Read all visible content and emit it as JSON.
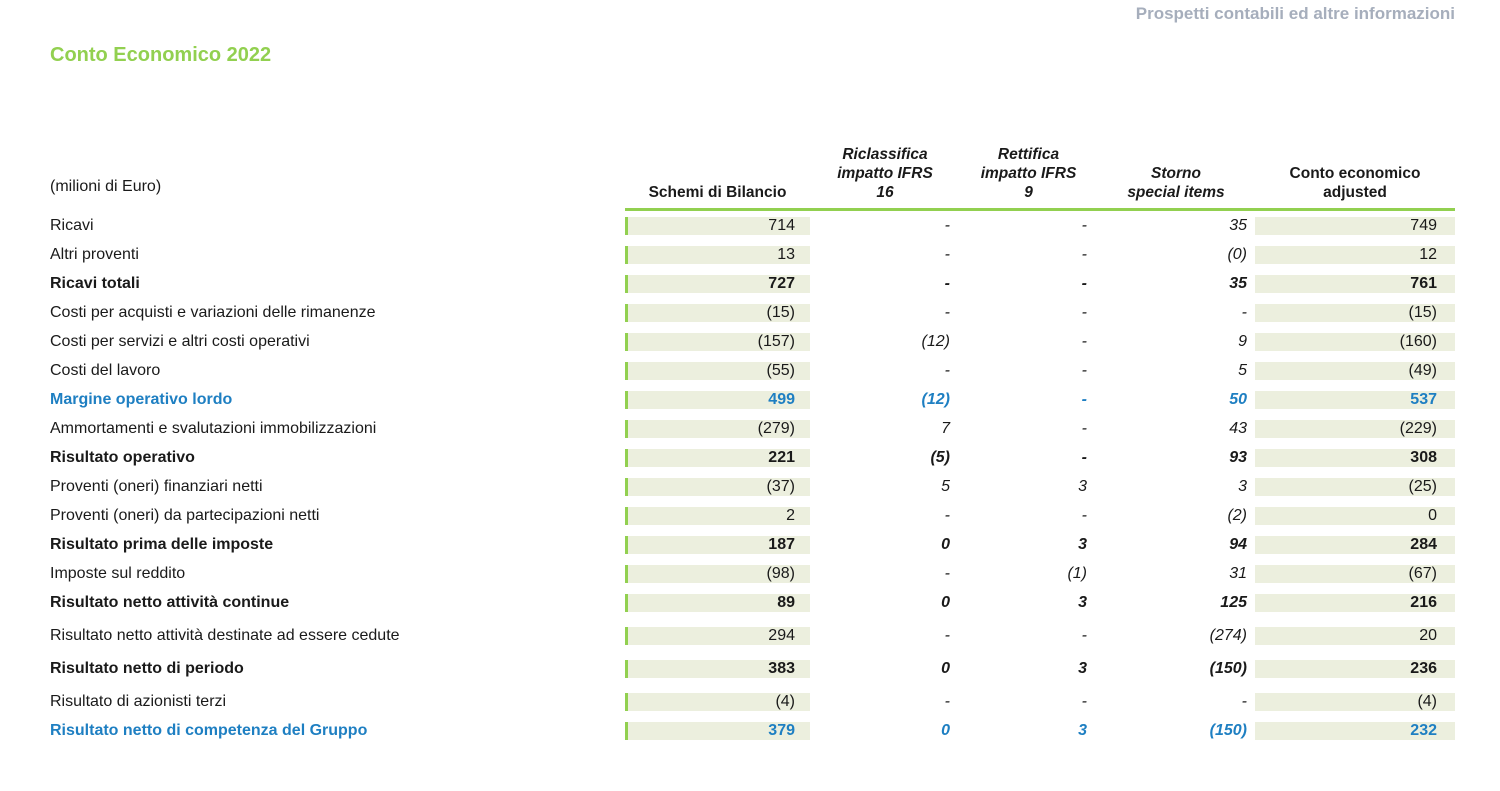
{
  "page_header": "Prospetti contabili ed altre informazioni",
  "title": "Conto Economico 2022",
  "colors": {
    "green": "#92d050",
    "blue": "#1e7fc2",
    "shaded_column_bg": "#ecefde",
    "header_gray": "#a6aebc",
    "text": "#1a1a1a"
  },
  "table": {
    "unit_label": "(milioni di Euro)",
    "columns": [
      {
        "label": "Schemi di Bilancio",
        "lines": [
          "Schemi di Bilancio"
        ]
      },
      {
        "label": "Riclassifica impatto IFRS 16",
        "lines": [
          "Riclassifica",
          "impatto IFRS",
          "16"
        ]
      },
      {
        "label": "Rettifica impatto IFRS 9",
        "lines": [
          "Rettifica",
          "impatto IFRS",
          "9"
        ]
      },
      {
        "label": "Storno special items",
        "lines": [
          "Storno",
          "special items"
        ]
      },
      {
        "label": "Conto economico adjusted",
        "lines": [
          "Conto economico",
          "adjusted"
        ]
      }
    ],
    "rows": [
      {
        "label": "Ricavi",
        "values": [
          "714",
          "-",
          "-",
          "35",
          "749"
        ],
        "style": "normal"
      },
      {
        "label": "Altri proventi",
        "values": [
          "13",
          "-",
          "-",
          "(0)",
          "12"
        ],
        "style": "normal"
      },
      {
        "label": "Ricavi totali",
        "values": [
          "727",
          "-",
          "-",
          "35",
          "761"
        ],
        "style": "bold"
      },
      {
        "label": "Costi per acquisti e variazioni delle rimanenze",
        "values": [
          "(15)",
          "-",
          "-",
          "-",
          "(15)"
        ],
        "style": "normal"
      },
      {
        "label": "Costi per servizi e altri costi operativi",
        "values": [
          "(157)",
          "(12)",
          "-",
          "9",
          "(160)"
        ],
        "style": "normal"
      },
      {
        "label": "Costi del lavoro",
        "values": [
          "(55)",
          "-",
          "-",
          "5",
          "(49)"
        ],
        "style": "normal"
      },
      {
        "label": "Margine operativo lordo",
        "values": [
          "499",
          "(12)",
          "-",
          "50",
          "537"
        ],
        "style": "blue"
      },
      {
        "label": "Ammortamenti e svalutazioni immobilizzazioni",
        "values": [
          "(279)",
          "7",
          "-",
          "43",
          "(229)"
        ],
        "style": "normal"
      },
      {
        "label": "Risultato operativo",
        "values": [
          "221",
          "(5)",
          "-",
          "93",
          "308"
        ],
        "style": "bold"
      },
      {
        "label": "Proventi (oneri) finanziari netti",
        "values": [
          "(37)",
          "5",
          "3",
          "3",
          "(25)"
        ],
        "style": "normal"
      },
      {
        "label": "Proventi (oneri) da partecipazioni netti",
        "values": [
          "2",
          "-",
          "-",
          "(2)",
          "0"
        ],
        "style": "normal"
      },
      {
        "label": "Risultato prima delle imposte",
        "values": [
          "187",
          "0",
          "3",
          "94",
          "284"
        ],
        "style": "bold"
      },
      {
        "label": "Imposte sul reddito",
        "values": [
          "(98)",
          "-",
          "(1)",
          "31",
          "(67)"
        ],
        "style": "normal"
      },
      {
        "label": "Risultato netto attività continue",
        "values": [
          "89",
          "0",
          "3",
          "125",
          "216"
        ],
        "style": "bold"
      },
      {
        "label": "Risultato netto attività destinate ad essere cedute",
        "values": [
          "294",
          "-",
          "-",
          "(274)",
          "20"
        ],
        "style": "normal"
      },
      {
        "label": "Risultato netto di periodo",
        "values": [
          "383",
          "0",
          "3",
          "(150)",
          "236"
        ],
        "style": "bold"
      },
      {
        "label": "Risultato di azionisti terzi",
        "values": [
          "(4)",
          "-",
          "-",
          "-",
          "(4)"
        ],
        "style": "normal"
      },
      {
        "label": "Risultato netto di competenza del Gruppo",
        "values": [
          "379",
          "0",
          "3",
          "(150)",
          "232"
        ],
        "style": "blue"
      }
    ]
  }
}
